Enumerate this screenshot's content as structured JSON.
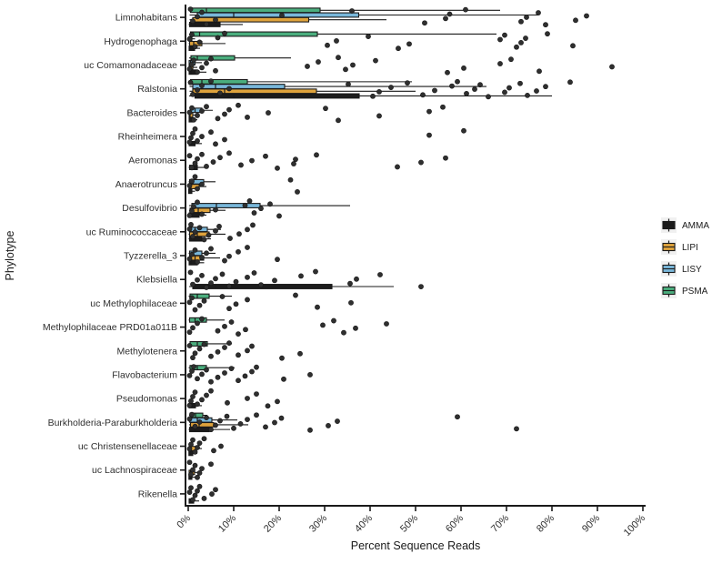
{
  "figure": {
    "x_axis": {
      "label": "Percent Sequence Reads",
      "min": 0,
      "max": 100,
      "ticks": [
        "0%",
        "10%",
        "20%",
        "30%",
        "40%",
        "50%",
        "60%",
        "70%",
        "80%",
        "90%",
        "100%"
      ]
    },
    "y_axis": {
      "label": "Phylotype"
    },
    "legend": {
      "entries": [
        {
          "label": "AMMA",
          "color": "#1C1C1C"
        },
        {
          "label": "LIPI",
          "color": "#DFA33C"
        },
        {
          "label": "LISY",
          "color": "#79B7DA"
        },
        {
          "label": "PSMA",
          "color": "#4BAE7E"
        }
      ],
      "key_background": "#F0F0F0"
    },
    "colors": {
      "point": "#2F2F2F",
      "stroke": "#1A1A1A",
      "axis": "#1A1A1A"
    }
  },
  "chart_data": {
    "type": "boxplot",
    "orientation": "horizontal",
    "grid": false,
    "legend_position": "right",
    "xlabel": "Percent Sequence Reads",
    "ylabel": "Phylotype",
    "xlim": [
      0,
      100
    ],
    "x_unit": "percent",
    "groups": [
      "AMMA",
      "LIPI",
      "LISY",
      "PSMA"
    ],
    "group_order_top_to_bottom": [
      "PSMA",
      "LISY",
      "LIPI",
      "AMMA"
    ],
    "box_stats_format": [
      "min",
      "q1",
      "median",
      "q3",
      "max"
    ],
    "rows": [
      {
        "name": "Limnohabitans",
        "boxes": {
          "PSMA": [
            0.2,
            0.5,
            4,
            29,
            68.6
          ],
          "LISY": [
            0.3,
            2,
            10,
            37.5,
            77
          ],
          "LIPI": [
            0.3,
            1,
            6,
            26.5,
            43.6
          ],
          "AMMA": [
            0.1,
            0.3,
            1.5,
            7,
            12
          ]
        },
        "points": [
          0.5,
          1,
          2,
          3,
          4,
          6,
          20.6,
          36,
          52,
          56.6,
          57.5,
          61,
          73.2,
          74.4,
          77,
          78.6,
          85.2,
          87.6
        ]
      },
      {
        "name": "Hydrogenophaga",
        "boxes": {
          "PSMA": [
            0.2,
            0.5,
            2.5,
            28.4,
            67.8
          ],
          "LISY": [
            0.1,
            0.15,
            0.3,
            0.8,
            1.5
          ],
          "LIPI": [
            0.1,
            0.3,
            1.2,
            3,
            8.2
          ],
          "AMMA": [
            0.1,
            0.2,
            0.5,
            1.4,
            2.6
          ]
        },
        "points": [
          0.3,
          0.8,
          1.5,
          2.5,
          6.5,
          8,
          30.6,
          32.6,
          39.6,
          46.2,
          48.6,
          68.6,
          69.6,
          72.2,
          73.2,
          74.2,
          79,
          84.6
        ]
      },
      {
        "name": "uc Comamonadaceae",
        "boxes": {
          "PSMA": [
            0.2,
            0.6,
            2,
            10.2,
            22.6
          ],
          "LISY": [
            0.1,
            0.2,
            0.5,
            1.5,
            3
          ],
          "LIPI": [
            0.1,
            0.2,
            0.4,
            1,
            2
          ],
          "AMMA": [
            0.1,
            0.2,
            0.6,
            2,
            4
          ]
        },
        "points": [
          0.3,
          0.8,
          1.2,
          2,
          3,
          4,
          5,
          6,
          26.2,
          28.6,
          33,
          34.6,
          36.2,
          41.2,
          57,
          60.6,
          68.6,
          71,
          77.2,
          93.2
        ]
      },
      {
        "name": "Ralstonia",
        "boxes": {
          "PSMA": [
            0.2,
            0.5,
            3,
            13,
            49.2
          ],
          "LISY": [
            0.3,
            1,
            6,
            21.2,
            65.6
          ],
          "LIPI": [
            0.3,
            1,
            8,
            28.2,
            50
          ],
          "AMMA": [
            0.2,
            1.5,
            10,
            37.6,
            80
          ]
        },
        "points": [
          0.5,
          1,
          2,
          3,
          5,
          7,
          9,
          35.2,
          40.6,
          42,
          44.6,
          48.2,
          51.6,
          54.2,
          58,
          59.2,
          61.2,
          63,
          64.2,
          66,
          69.6,
          70.6,
          73,
          74.6,
          76.6,
          78.6,
          84
        ]
      },
      {
        "name": "Bacteroides",
        "boxes": {
          "LISY": [
            0.2,
            0.5,
            1.5,
            3,
            5.4
          ],
          "LIPI": [
            0.1,
            0.2,
            0.4,
            1,
            2
          ],
          "AMMA": [
            0.1,
            0.2,
            0.4,
            1,
            2
          ]
        },
        "points": [
          0.3,
          0.8,
          1.2,
          2,
          3,
          4,
          6.5,
          8,
          9,
          11,
          13,
          17.6,
          30.2,
          33,
          42,
          53,
          56
        ]
      },
      {
        "name": "Rheinheimera",
        "boxes": {
          "AMMA": [
            0.1,
            0.2,
            0.5,
            1.5,
            3
          ]
        },
        "points": [
          0.3,
          0.6,
          1,
          1.5,
          2,
          3,
          5,
          6,
          8,
          53,
          60.6
        ]
      },
      {
        "name": "Aeromonas",
        "boxes": {
          "AMMA": [
            0.1,
            0.3,
            0.8,
            2,
            4.2
          ]
        },
        "points": [
          0.3,
          0.8,
          1.5,
          2,
          3,
          4,
          5.5,
          7,
          9,
          11.6,
          14,
          17,
          19.6,
          23.2,
          23.6,
          28.2,
          46,
          51.2,
          56.6
        ]
      },
      {
        "name": "Anaerotruncus",
        "boxes": {
          "LISY": [
            0.1,
            0.3,
            1,
            3.4,
            6
          ],
          "LIPI": [
            0.1,
            0.2,
            0.6,
            2.4,
            4
          ],
          "AMMA": [
            0.05,
            0.1,
            0.3,
            0.8,
            1.5
          ]
        },
        "points": [
          0.3,
          0.8,
          1.5,
          2,
          3,
          22.5,
          24
        ]
      },
      {
        "name": "Desulfovibrio",
        "boxes": {
          "LISY": [
            0.2,
            0.8,
            6.2,
            15.8,
            35.6
          ],
          "LIPI": [
            0.2,
            0.4,
            2.2,
            4.8,
            8.2
          ],
          "AMMA": [
            0.1,
            0.2,
            0.8,
            2.4,
            4
          ]
        },
        "points": [
          0.3,
          0.8,
          1.2,
          2,
          3,
          6,
          12.5,
          13.5,
          14.5,
          16,
          18,
          20
        ]
      },
      {
        "name": "uc Ruminococcaceae",
        "boxes": {
          "LISY": [
            0.2,
            0.4,
            1.5,
            4.2,
            7.2
          ],
          "LIPI": [
            0.1,
            0.3,
            2,
            4.6,
            8.2
          ],
          "AMMA": [
            0.1,
            0.3,
            1.2,
            3,
            5
          ]
        },
        "points": [
          0.3,
          0.6,
          1,
          1.5,
          2.5,
          3.5,
          4.5,
          6,
          6.8,
          9.2,
          11.2,
          13,
          14.2
        ]
      },
      {
        "name": "Tyzzerella_3",
        "boxes": {
          "LISY": [
            0.1,
            0.3,
            1.2,
            3,
            6
          ],
          "LIPI": [
            0.1,
            0.3,
            1.5,
            3.4,
            7
          ],
          "AMMA": [
            0.1,
            0.2,
            0.6,
            2,
            3.5
          ]
        },
        "points": [
          0.3,
          0.8,
          1.5,
          2,
          3,
          4,
          5,
          8,
          9,
          11,
          13,
          19.6
        ]
      },
      {
        "name": "Klebsiella",
        "boxes": {
          "AMMA": [
            0.2,
            1,
            6,
            31.6,
            45.2
          ]
        },
        "points": [
          0.5,
          1,
          2,
          3,
          4,
          5,
          6,
          7.5,
          9,
          10.5,
          13,
          14.5,
          16,
          19,
          24.8,
          28,
          35.6,
          37,
          42.2,
          51.2
        ]
      },
      {
        "name": "uc Methylophilaceae",
        "boxes": {
          "PSMA": [
            0.1,
            0.4,
            2,
            4.6,
            9.6
          ]
        },
        "points": [
          0.3,
          0.8,
          1.5,
          2.5,
          3.5,
          7.5,
          9,
          10.5,
          13,
          23.6,
          28.4,
          35.8
        ]
      },
      {
        "name": "Methylophilaceae PRD01a011B",
        "boxes": {
          "PSMA": [
            0.1,
            0.3,
            1.5,
            4,
            8
          ]
        },
        "points": [
          0.3,
          1,
          2,
          3,
          6.5,
          8,
          9.5,
          11,
          12.6,
          29.6,
          32,
          34.2,
          36.8,
          43.6
        ]
      },
      {
        "name": "Methylotenera",
        "boxes": {
          "PSMA": [
            0.1,
            0.4,
            2,
            4.2,
            9.6
          ]
        },
        "points": [
          0.3,
          1,
          1.5,
          2.5,
          3.5,
          5,
          6.5,
          8,
          9,
          11,
          13,
          14,
          20.6,
          24.6
        ]
      },
      {
        "name": "Flavobacterium",
        "boxes": {
          "PSMA": [
            0.1,
            0.4,
            2,
            4,
            10.2
          ]
        },
        "points": [
          0.3,
          0.8,
          1.2,
          2,
          3,
          4,
          5,
          6.5,
          8,
          9.5,
          11,
          12.5,
          14,
          15,
          21,
          26.8
        ]
      },
      {
        "name": "Pseudomonas",
        "boxes": {
          "AMMA": [
            0.1,
            0.2,
            0.5,
            1.6,
            3
          ]
        },
        "points": [
          0.3,
          0.6,
          1,
          1.5,
          2,
          3,
          4,
          5,
          8.6,
          13,
          15,
          17.5,
          19.6
        ]
      },
      {
        "name": "Burkholderia-Paraburkholderia",
        "boxes": {
          "PSMA": [
            0.2,
            0.4,
            1.6,
            3.2,
            4.2
          ],
          "LISY": [
            0.1,
            0.3,
            2,
            5.2,
            10.8
          ],
          "LIPI": [
            0.2,
            0.5,
            2.4,
            5.6,
            13.2
          ],
          "AMMA": [
            0.1,
            0.3,
            1.5,
            4.6,
            9.2
          ]
        },
        "points": [
          0.3,
          0.8,
          1.5,
          2.5,
          4,
          5,
          6,
          7,
          8.5,
          10,
          11.5,
          13,
          15,
          17,
          19,
          20.5,
          26.8,
          30.8,
          32.8,
          59.2,
          72.2
        ]
      },
      {
        "name": "uc Christensenellaceae",
        "boxes": {
          "LIPI": [
            0.1,
            0.2,
            0.6,
            1.6,
            3
          ],
          "AMMA": [
            0.1,
            0.15,
            0.4,
            1,
            2
          ]
        },
        "points": [
          0.3,
          0.6,
          1,
          1.5,
          2,
          2.5,
          3.5,
          5.6,
          7.2
        ]
      },
      {
        "name": "uc Lachnospiraceae",
        "boxes": {
          "LIPI": [
            0.1,
            0.2,
            0.5,
            1.4,
            2.6
          ],
          "AMMA": [
            0.1,
            0.15,
            0.3,
            0.8,
            1.6
          ]
        },
        "points": [
          0.3,
          0.6,
          1,
          1.5,
          2,
          2.5,
          3,
          5
        ]
      },
      {
        "name": "Rikenella",
        "boxes": {
          "AMMA": [
            0.1,
            0.2,
            0.5,
            1.2,
            2.4
          ]
        },
        "points": [
          0.3,
          0.6,
          1,
          1.5,
          2,
          2.5,
          3.5,
          5.2,
          6
        ]
      }
    ]
  }
}
